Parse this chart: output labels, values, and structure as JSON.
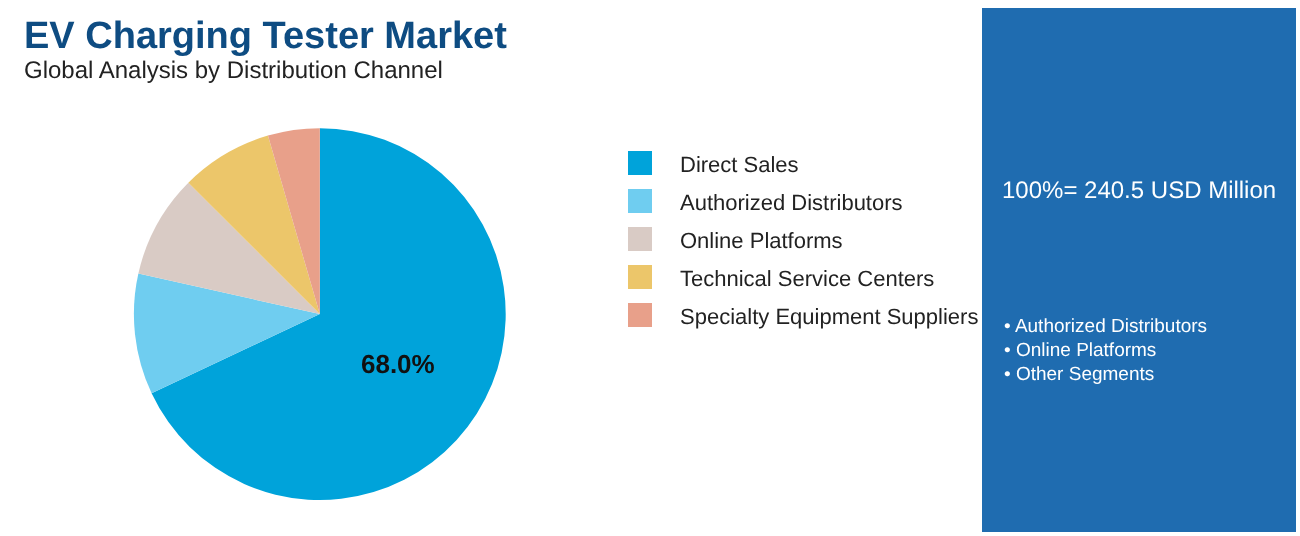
{
  "chart_data": {
    "type": "pie",
    "title": "EV Charging Tester Market",
    "subtitle": "Global Analysis by Distribution Channel",
    "categories": [
      "Direct Sales",
      "Authorized Distributors",
      "Online Platforms",
      "Technical Service Centers",
      "Specialty Equipment Suppliers"
    ],
    "values": [
      68.0,
      10.5,
      9.0,
      8.0,
      4.5
    ],
    "colors": [
      "#00a3da",
      "#6fcdf0",
      "#d9cbc5",
      "#ecc66a",
      "#e8a08a"
    ],
    "value_labels": [
      "68.0%",
      null,
      null,
      null,
      null
    ],
    "legend": "right",
    "annotations": [
      "100%= 240.5 USD Million",
      "• Authorized Distributors",
      "• Online Platforms",
      "• Other Segments"
    ]
  }
}
